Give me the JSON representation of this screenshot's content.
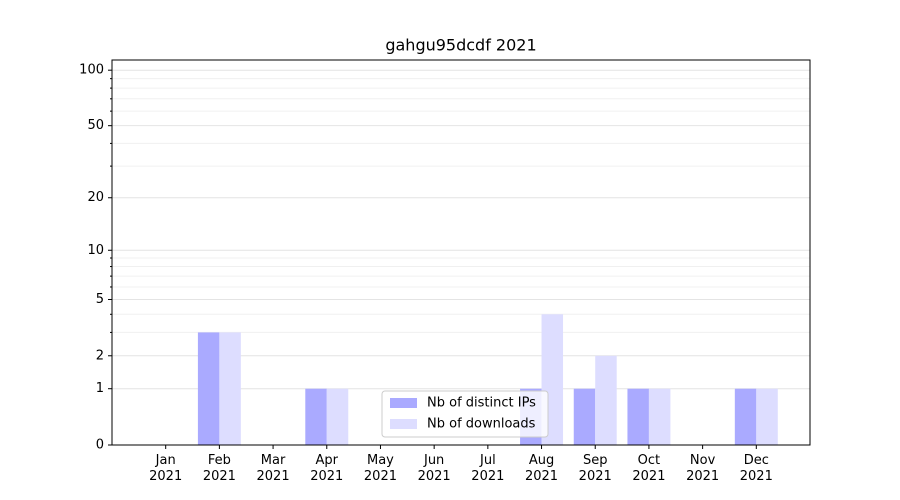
{
  "chart_data": {
    "type": "bar",
    "title": "gahgu95dcdf 2021",
    "categories": [
      "Jan\n2021",
      "Feb\n2021",
      "Mar\n2021",
      "Apr\n2021",
      "May\n2021",
      "Jun\n2021",
      "Jul\n2021",
      "Aug\n2021",
      "Sep\n2021",
      "Oct\n2021",
      "Nov\n2021",
      "Dec\n2021"
    ],
    "series": [
      {
        "name": "Nb of distinct IPs",
        "color": "#aaaaff",
        "values": [
          0,
          3,
          0,
          1,
          0,
          0,
          0,
          1,
          1,
          1,
          0,
          1
        ]
      },
      {
        "name": "Nb of downloads",
        "color": "#ddddff",
        "values": [
          0,
          3,
          0,
          1,
          0,
          0,
          0,
          4,
          2,
          1,
          0,
          1
        ]
      }
    ],
    "y_scale": "log1p",
    "ylim": [
      0,
      113.5
    ],
    "yticks": [
      0,
      1,
      2,
      5,
      10,
      20,
      50,
      100
    ],
    "minor_yticks": [
      3,
      4,
      6,
      7,
      8,
      9,
      30,
      40,
      60,
      70,
      80,
      90
    ],
    "grid": true,
    "legend": "lower center"
  }
}
